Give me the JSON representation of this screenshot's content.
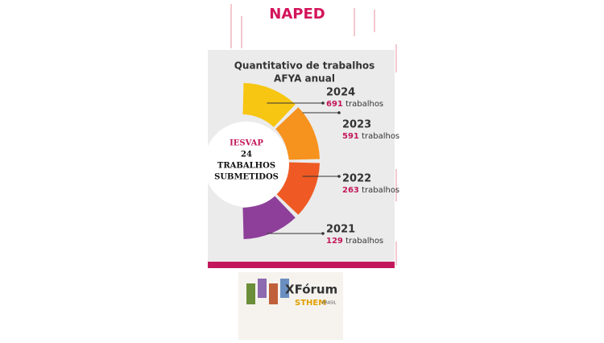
{
  "header": {
    "brand": "NAPED"
  },
  "infographic": {
    "title_line1": "Quantitativo de trabalhos",
    "title_line2": "AFYA anual",
    "center": {
      "institution": "IESVAP",
      "count": 24,
      "line1": "TRABALHOS",
      "line2": "SUBMETIDOS"
    },
    "items": [
      {
        "year": "2024",
        "count": 691,
        "unit": "trabalhos",
        "color": "#f7c613"
      },
      {
        "year": "2023",
        "count": 591,
        "unit": "trabalhos",
        "color": "#f6921e"
      },
      {
        "year": "2022",
        "count": 263,
        "unit": "trabalhos",
        "color": "#ef5a24"
      },
      {
        "year": "2021",
        "count": 129,
        "unit": "trabalhos",
        "color": "#8e3f9a"
      }
    ]
  },
  "footer_logo": {
    "title": "XFórum",
    "brand": "STHEM",
    "country": "BRASIL"
  }
}
